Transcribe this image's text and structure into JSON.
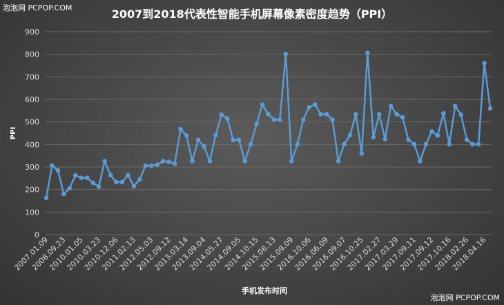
{
  "watermark": {
    "top_left": "泡泡网 PCPOP.COM",
    "bottom_right": "泡泡网 PCPOP.COM"
  },
  "colors": {
    "line": "#5b9bd5",
    "grid": "#6a6a6a",
    "text": "#ffffff",
    "tick_text": "#d9d9d9"
  },
  "chart_data": {
    "type": "line",
    "title": "2007到2018代表性智能手机屏幕像素密度趋势（PPI）",
    "xlabel": "手机发布时间",
    "ylabel": "PPI",
    "ylim": [
      0,
      900
    ],
    "yticks": [
      0,
      100,
      200,
      300,
      400,
      500,
      600,
      700,
      800,
      900
    ],
    "grid": true,
    "xtick_labels": [
      "2007.01.09",
      "2008.09.23",
      "2010.01.05",
      "2010.03.23",
      "2010.12.06",
      "2011.02.13",
      "2012.05.03",
      "2012.09.12",
      "2013.03.14",
      "2013.09.04",
      "2014.05.27",
      "2014.09.05",
      "2014.10.15",
      "2015.08.13",
      "2015.09.09",
      "2016.10.06",
      "2016.06.09",
      "2016.09.07",
      "2016.10.25",
      "2017.02.27",
      "2017.03.29",
      "2017.09.11",
      "2017.09.12",
      "2017.10.16",
      "2018.02.26",
      "2018.04.16"
    ],
    "values": [
      163,
      306,
      285,
      180,
      206,
      263,
      252,
      252,
      230,
      213,
      326,
      264,
      233,
      233,
      264,
      215,
      245,
      306,
      306,
      310,
      326,
      323,
      315,
      468,
      440,
      326,
      420,
      392,
      326,
      441,
      532,
      515,
      420,
      420,
      326,
      401,
      490,
      577,
      534,
      510,
      510,
      801,
      326,
      401,
      510,
      565,
      577,
      534,
      534,
      510,
      326,
      401,
      441,
      534,
      360,
      806,
      432,
      534,
      424,
      570,
      534,
      520,
      420,
      401,
      326,
      401,
      458,
      440,
      538,
      401,
      570,
      532,
      420,
      401,
      401,
      761,
      560
    ],
    "xtick_indices": [
      0,
      3,
      6,
      9,
      12,
      15,
      18,
      21,
      24,
      27,
      30,
      33,
      36,
      39,
      42,
      45,
      48,
      51,
      54,
      57,
      60,
      63,
      66,
      69,
      72,
      75
    ]
  }
}
